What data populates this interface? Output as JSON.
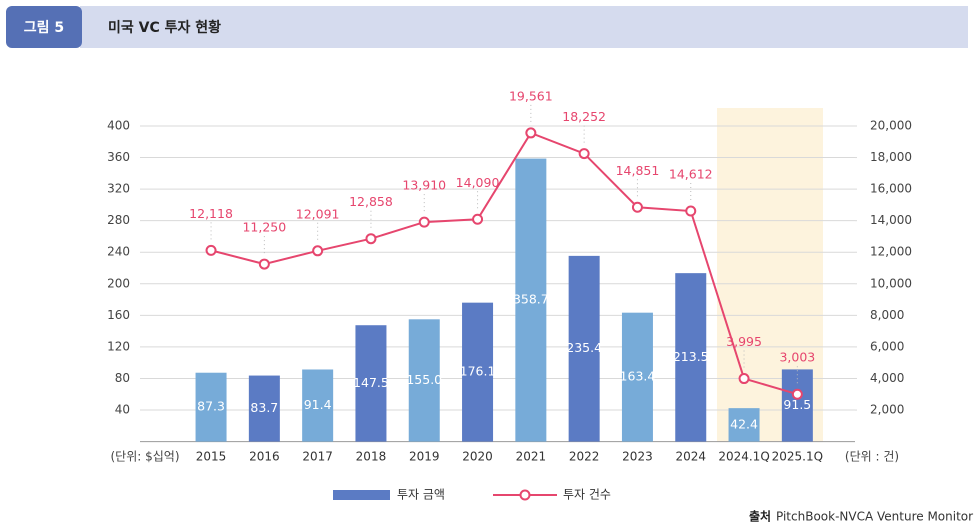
{
  "header": {
    "label": "그림 5",
    "title": "미국 VC 투자 현황"
  },
  "chart_data": {
    "type": "bar-line",
    "y_unit": "(단위: $십억)",
    "y2_unit": "(단위 : 건)",
    "categories": [
      "2015",
      "2016",
      "2017",
      "2018",
      "2019",
      "2020",
      "2021",
      "2022",
      "2023",
      "2024",
      "2024.1Q",
      "2025.1Q"
    ],
    "series": [
      {
        "name": "투자 금액",
        "type": "bar",
        "color": "#5b7bc4",
        "colors": [
          "#77abd8",
          "#5b7bc4",
          "#77abd8",
          "#5b7bc4",
          "#77abd8",
          "#5b7bc4",
          "#77abd8",
          "#5b7bc4",
          "#77abd8",
          "#5b7bc4",
          "#77abd8",
          "#5b7bc4"
        ],
        "values": [
          87.3,
          83.7,
          91.4,
          147.5,
          155.0,
          176.1,
          358.7,
          235.4,
          163.4,
          213.5,
          42.4,
          91.5
        ],
        "value_labels": [
          "87.3",
          "83.7",
          "91.4",
          "147.5",
          "155.0",
          "176.1",
          "358.7",
          "235.4",
          "163.4",
          "213.5",
          "42.4",
          "91.5"
        ]
      },
      {
        "name": "투자 건수",
        "type": "line",
        "axis": "y2",
        "color": "#e6466e",
        "values": [
          12118,
          11250,
          12091,
          12858,
          13910,
          14090,
          19561,
          18252,
          14851,
          14612,
          3995,
          3003
        ],
        "value_labels": [
          "12,118",
          "11,250",
          "12,091",
          "12,858",
          "13,910",
          "14,090",
          "19,561",
          "18,252",
          "14,851",
          "14,612",
          "3,995",
          "3,003"
        ]
      }
    ],
    "ylim": [
      0,
      400
    ],
    "yticks": [
      40,
      80,
      120,
      160,
      200,
      240,
      280,
      320,
      360,
      400
    ],
    "y2lim": [
      0,
      20000
    ],
    "y2ticks": [
      {
        "value": 2000,
        "label": "2,000"
      },
      {
        "value": 4000,
        "label": "4,000"
      },
      {
        "value": 6000,
        "label": "6,000"
      },
      {
        "value": 8000,
        "label": "8,000"
      },
      {
        "value": 10000,
        "label": "10,000"
      },
      {
        "value": 12000,
        "label": "12,000"
      },
      {
        "value": 14000,
        "label": "14,000"
      },
      {
        "value": 16000,
        "label": "16,000"
      },
      {
        "value": 18000,
        "label": "18,000"
      },
      {
        "value": 20000,
        "label": "20,000"
      }
    ],
    "grid": true
  },
  "source": {
    "label": "출처",
    "text": "PitchBook-NVCA Venture Monitor"
  }
}
